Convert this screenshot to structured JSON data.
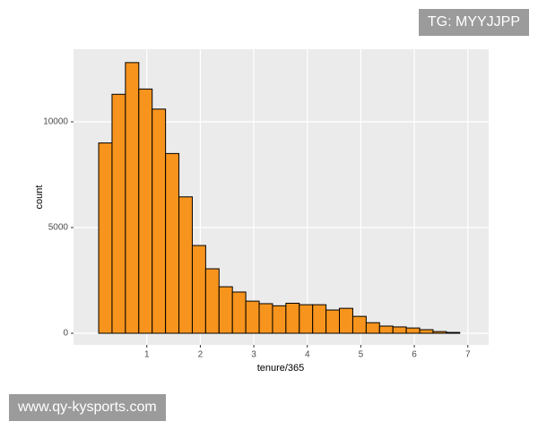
{
  "chart_data": {
    "type": "histogram",
    "xlabel": "tenure/365",
    "ylabel": "count",
    "bins": [
      0.1,
      0.35,
      0.6,
      0.85,
      1.1,
      1.35,
      1.6,
      1.85,
      2.1,
      2.35,
      2.6,
      2.85,
      3.1,
      3.35,
      3.6,
      3.85,
      4.1,
      4.35,
      4.6,
      4.85,
      5.1,
      5.35,
      5.6,
      5.85,
      6.1,
      6.35,
      6.6,
      6.85
    ],
    "values": [
      9000,
      11300,
      12800,
      11550,
      10600,
      8500,
      6450,
      4150,
      3050,
      2200,
      1950,
      1520,
      1400,
      1300,
      1420,
      1350,
      1350,
      1100,
      1180,
      800,
      500,
      340,
      300,
      250,
      170,
      80,
      40
    ],
    "color": "#f7941d",
    "xlim": [
      -0.37,
      7.39
    ],
    "xticks": [
      1,
      2,
      3,
      4,
      5,
      6,
      7
    ],
    "ylim": [
      -550,
      13430
    ],
    "yticks": [
      0,
      5000,
      10000
    ],
    "grid": true
  },
  "overlays": {
    "tag": "TG: MYYJJPP",
    "site": "www.qy-kysports.com"
  }
}
